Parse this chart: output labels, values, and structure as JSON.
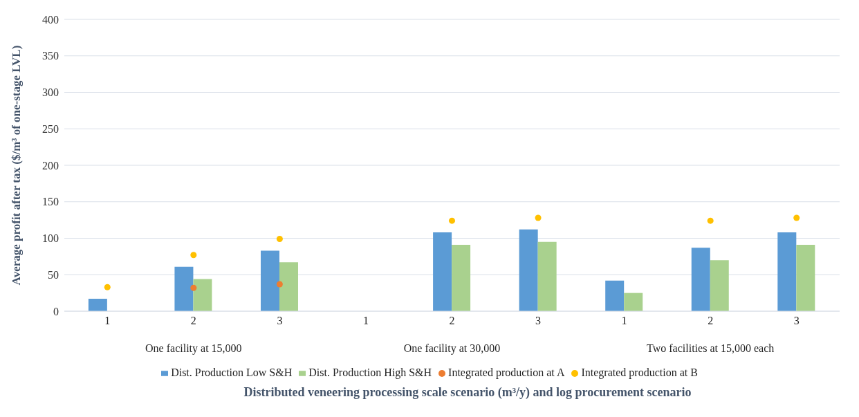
{
  "chart_data": {
    "type": "bar",
    "xlabel": "Distributed veneering processing scale scenario (m³/y) and log procurement scenario",
    "ylabel": "Average profit after tax ($/m³ of one-stage LVL)",
    "categories": [
      "1",
      "2",
      "3",
      "1",
      "2",
      "3",
      "1",
      "2",
      "3"
    ],
    "annotations": [
      "One facility at 15,000",
      "One facility at 30,000",
      "Two facilities at 15,000 each"
    ],
    "series": [
      {
        "name": "Dist. Production Low S&H",
        "color": "#5b9bd5",
        "values": [
          17,
          61,
          83,
          null,
          108,
          112,
          42,
          87,
          108
        ]
      },
      {
        "name": "Dist. Production High S&H",
        "color": "#a9d18e",
        "values": [
          null,
          44,
          67,
          null,
          91,
          95,
          25,
          70,
          91
        ]
      },
      {
        "name": "Integrated production at A",
        "type": "scatter",
        "color": "#ed7d31",
        "values": [
          null,
          32,
          37,
          null,
          null,
          null,
          null,
          null,
          null
        ]
      },
      {
        "name": "Integrated production at B",
        "type": "scatter",
        "color": "#ffc000",
        "values": [
          33,
          77,
          99,
          null,
          124,
          128,
          null,
          124,
          128
        ]
      }
    ],
    "ylim": [
      0,
      400
    ],
    "yticks": [
      0,
      50,
      100,
      150,
      200,
      250,
      300,
      350,
      400
    ],
    "grid": "y",
    "legend": "bottom",
    "marker": "circle"
  }
}
